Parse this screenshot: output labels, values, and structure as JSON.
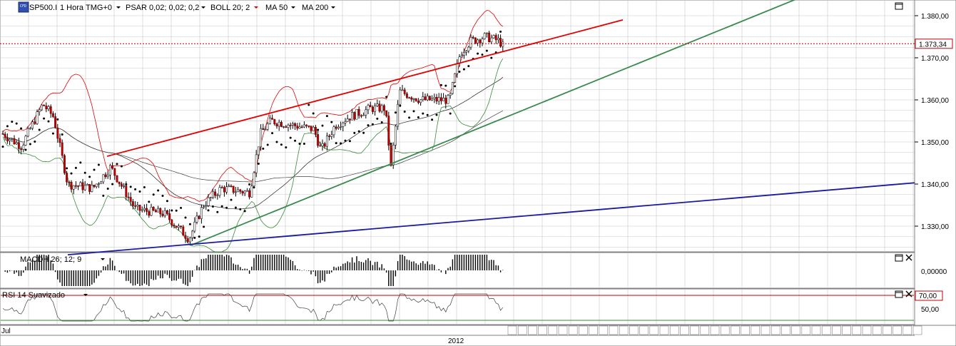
{
  "header": {
    "symbol": "SP500.I",
    "timeframe": "1 Hora",
    "timezone": "TMG+0",
    "indicators": [
      {
        "label": "PSAR 0,02; 0,02; 0,2",
        "color": "#000000"
      },
      {
        "label": "BOLL 20; 2",
        "color": "#e00000"
      },
      {
        "label": "MA 50",
        "color": "#000000"
      },
      {
        "label": "MA 200",
        "color": "#000000"
      }
    ],
    "icon": "cfd-symbol-icon"
  },
  "panels": {
    "macd_label": "MACDH 26; 12; 9",
    "rsi_label": "RSI 14 Suavizado"
  },
  "price_axis": {
    "ticks": [
      "1.380,00",
      "1.370,00",
      "1.360,00",
      "1.350,00",
      "1.340,00",
      "1.330,00"
    ],
    "current_price": "1.373,34"
  },
  "macd_axis": {
    "ticks": [
      "0,00000"
    ]
  },
  "rsi_axis": {
    "ticks": [
      "70,00",
      "50,00"
    ]
  },
  "time_axis": {
    "left_label": "Jul",
    "year_label": "2012"
  },
  "colors": {
    "trend_red": "#e00000",
    "trend_green": "#3a8a4e",
    "trend_blue": "#1a1aa0",
    "boll_upper": "#e00000",
    "boll_lower": "#3a8a3a",
    "current_price_line": "#c00000",
    "grid": "#c8c8c8"
  },
  "chart_data": {
    "type": "candlestick",
    "ylim": [
      1323,
      1382
    ],
    "current_price": 1373.34,
    "series": [
      {
        "name": "SP500.I",
        "kind": "candles"
      },
      {
        "name": "PSAR 0,02; 0,02; 0,2",
        "kind": "dots"
      },
      {
        "name": "BOLL 20; 2",
        "kind": "band"
      },
      {
        "name": "MA 50",
        "kind": "line"
      },
      {
        "name": "MA 200",
        "kind": "line"
      }
    ],
    "trendlines": [
      {
        "color": "red",
        "from": [
          1346.6
        ],
        "to": [
          1379
        ]
      },
      {
        "color": "green",
        "from": [
          1325.5
        ],
        "to": [
          1384
        ]
      },
      {
        "color": "blue",
        "from": [
          1323.5
        ],
        "to": [
          1340.3
        ]
      }
    ],
    "rsi_levels": [
      70,
      30
    ]
  }
}
